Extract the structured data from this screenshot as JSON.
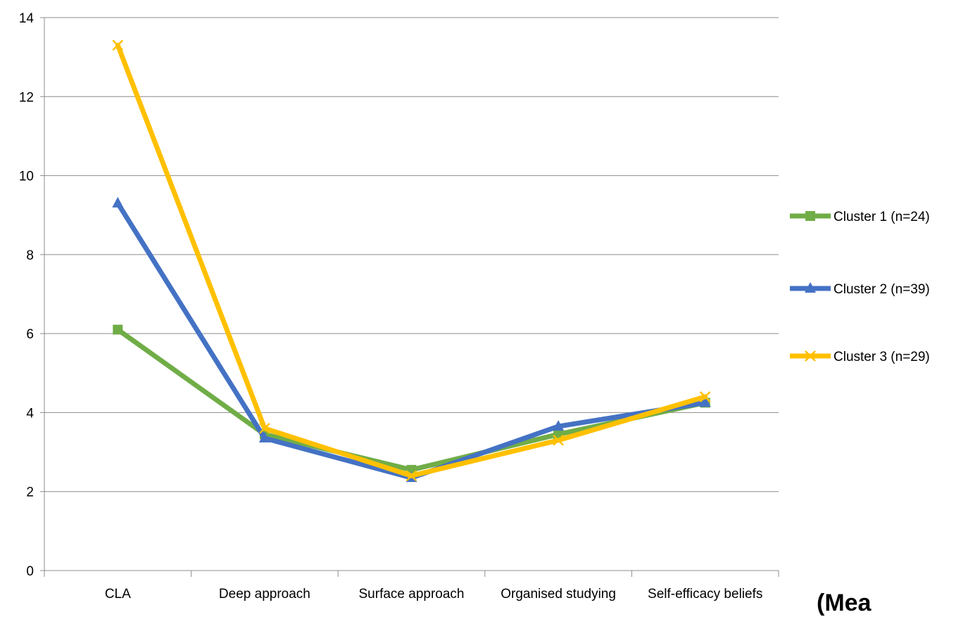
{
  "chart_data": {
    "type": "line",
    "categories": [
      "CLA",
      "Deep approach",
      "Surface approach",
      "Organised studying",
      "Self-efficacy beliefs"
    ],
    "series": [
      {
        "name": "Cluster 1 (n=24)",
        "values": [
          6.1,
          3.45,
          2.55,
          3.45,
          4.25
        ],
        "color": "#70AD47",
        "marker": "square"
      },
      {
        "name": "Cluster 2 (n=39)",
        "values": [
          9.3,
          3.35,
          2.35,
          3.65,
          4.25
        ],
        "color": "#4472C4",
        "marker": "triangle"
      },
      {
        "name": "Cluster 3 (n=29)",
        "values": [
          13.3,
          3.6,
          2.4,
          3.3,
          4.4
        ],
        "color": "#FFC000",
        "marker": "x"
      }
    ],
    "yticks": [
      0,
      2,
      4,
      6,
      8,
      10,
      12,
      14
    ],
    "ylim": [
      0,
      14
    ],
    "grid": true,
    "legend": "right",
    "title": "",
    "xlabel": "",
    "ylabel": ""
  },
  "partial_text": "(Mea"
}
